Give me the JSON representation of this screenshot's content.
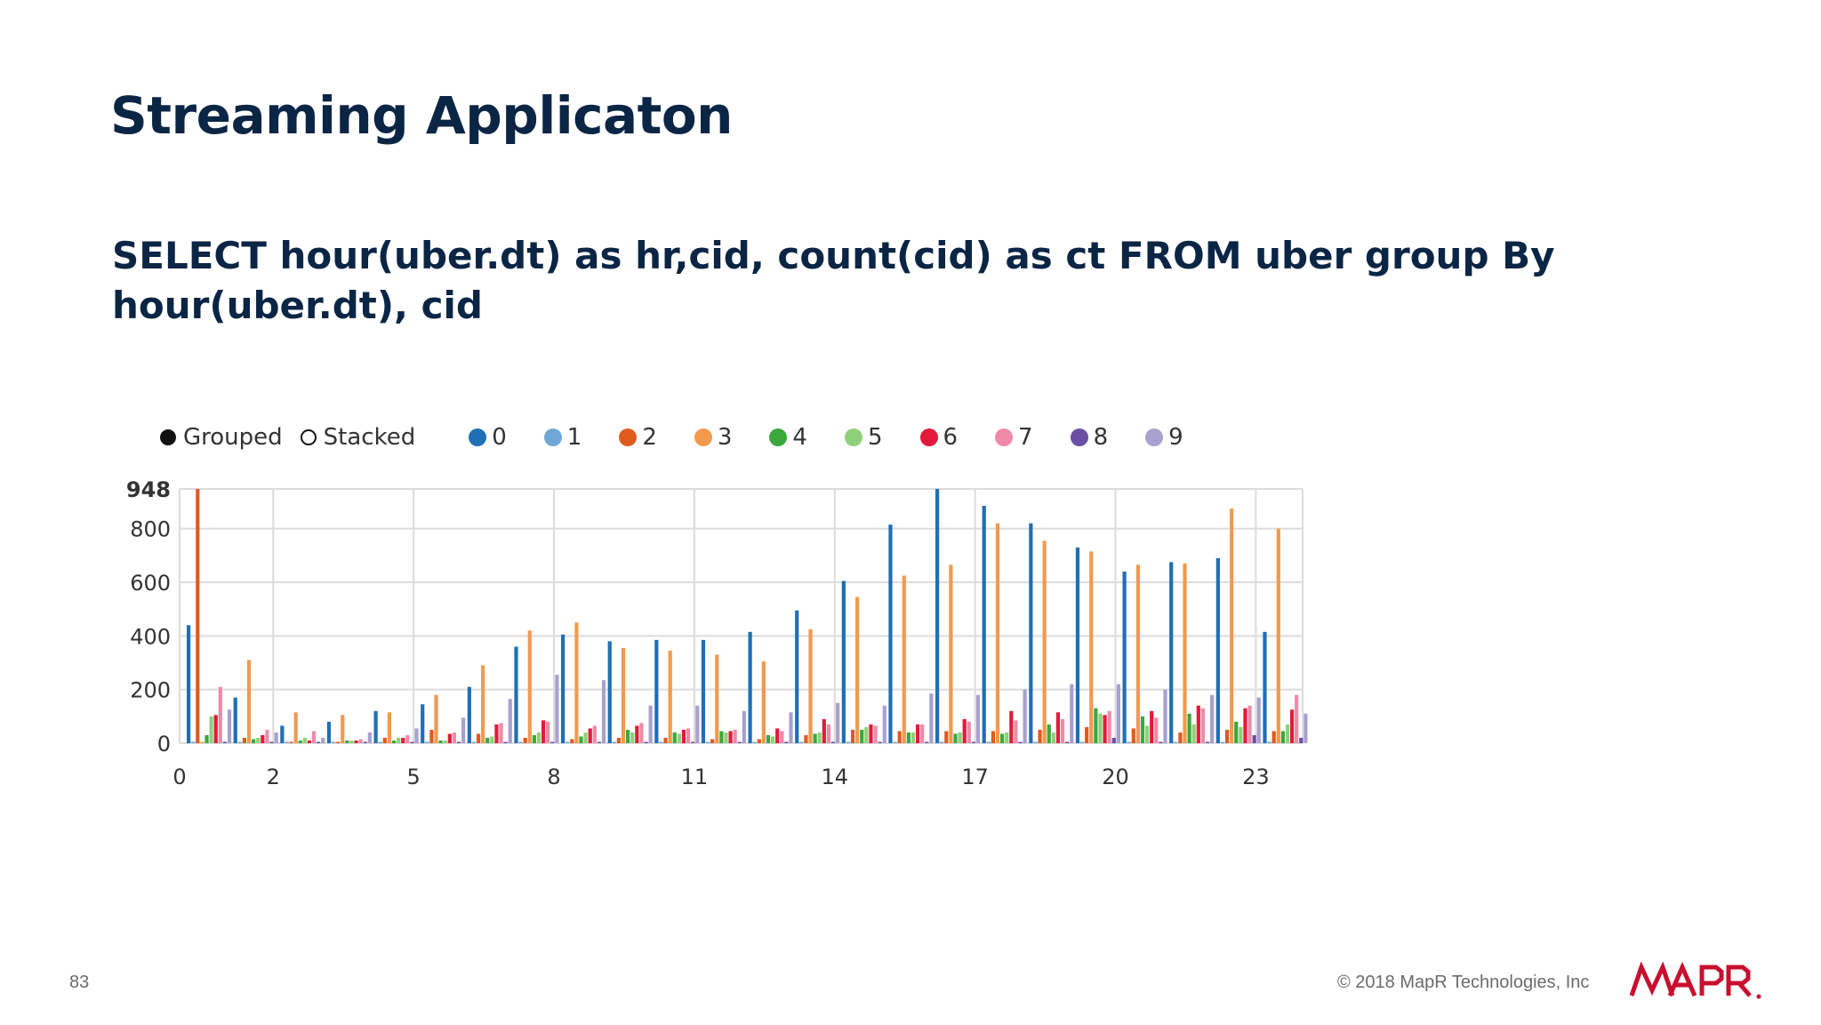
{
  "slide": {
    "title": "Streaming Applicaton",
    "query": "SELECT hour(uber.dt) as hr,cid, count(cid) as ct FROM uber group By hour(uber.dt), cid",
    "number": "83",
    "copyright": "© 2018 MapR Technologies, Inc",
    "logo_text": "MAPR"
  },
  "legend": {
    "modes": [
      {
        "label": "Grouped",
        "selected": true
      },
      {
        "label": "Stacked",
        "selected": false
      }
    ]
  },
  "chart_data": {
    "type": "bar",
    "grouped": true,
    "x_tick_labels": [
      "0",
      "2",
      "5",
      "8",
      "11",
      "14",
      "17",
      "20",
      "23"
    ],
    "y_tick_labels": [
      "948",
      "800",
      "600",
      "400",
      "200",
      "0"
    ],
    "ylim": [
      0,
      948
    ],
    "grid": true,
    "categories": [
      "0",
      "1",
      "2",
      "3",
      "4",
      "5",
      "6",
      "7",
      "8",
      "9",
      "10",
      "11",
      "12",
      "13",
      "14",
      "15",
      "16",
      "17",
      "18",
      "19",
      "20",
      "21",
      "22",
      "23"
    ],
    "series": [
      {
        "name": "0",
        "color": "#1f6fb5",
        "values": [
          440,
          170,
          65,
          80,
          120,
          145,
          210,
          360,
          405,
          380,
          385,
          385,
          415,
          495,
          605,
          815,
          948,
          885,
          820,
          730,
          640,
          675,
          690,
          415
        ]
      },
      {
        "name": "1",
        "color": "#6fa8d6",
        "values": [
          5,
          5,
          5,
          5,
          5,
          5,
          5,
          5,
          5,
          5,
          5,
          5,
          5,
          5,
          5,
          5,
          5,
          5,
          5,
          5,
          5,
          5,
          5,
          5
        ]
      },
      {
        "name": "2",
        "color": "#e05a1e",
        "values": [
          948,
          20,
          5,
          5,
          20,
          50,
          35,
          20,
          15,
          20,
          20,
          15,
          15,
          30,
          50,
          45,
          45,
          45,
          50,
          60,
          55,
          40,
          50,
          45
        ]
      },
      {
        "name": "3",
        "color": "#f19a4e",
        "values": [
          5,
          310,
          115,
          105,
          115,
          180,
          290,
          420,
          450,
          355,
          345,
          330,
          305,
          425,
          545,
          625,
          665,
          820,
          755,
          715,
          665,
          670,
          875,
          800
        ]
      },
      {
        "name": "4",
        "color": "#3aa83a",
        "values": [
          30,
          15,
          10,
          10,
          10,
          10,
          20,
          30,
          25,
          50,
          40,
          45,
          30,
          35,
          50,
          40,
          35,
          35,
          70,
          130,
          100,
          110,
          80,
          45
        ]
      },
      {
        "name": "5",
        "color": "#8ed17a",
        "values": [
          100,
          20,
          20,
          10,
          20,
          10,
          25,
          40,
          40,
          40,
          35,
          40,
          25,
          40,
          60,
          40,
          40,
          40,
          40,
          110,
          65,
          70,
          60,
          70
        ]
      },
      {
        "name": "6",
        "color": "#e31a3b",
        "values": [
          105,
          30,
          10,
          10,
          20,
          35,
          70,
          85,
          55,
          65,
          50,
          45,
          55,
          90,
          70,
          70,
          90,
          120,
          115,
          105,
          120,
          140,
          130,
          125
        ]
      },
      {
        "name": "7",
        "color": "#f08aa8",
        "values": [
          210,
          50,
          45,
          15,
          30,
          40,
          75,
          80,
          65,
          75,
          55,
          50,
          45,
          70,
          65,
          70,
          80,
          85,
          90,
          120,
          95,
          130,
          140,
          180
        ]
      },
      {
        "name": "8",
        "color": "#6a4fa3",
        "values": [
          5,
          5,
          5,
          5,
          5,
          5,
          5,
          5,
          5,
          5,
          5,
          5,
          5,
          5,
          5,
          5,
          5,
          5,
          5,
          20,
          5,
          5,
          30,
          20
        ]
      },
      {
        "name": "9",
        "color": "#a8a0cf",
        "values": [
          125,
          40,
          20,
          40,
          55,
          95,
          165,
          255,
          235,
          140,
          140,
          120,
          115,
          150,
          140,
          185,
          180,
          200,
          220,
          220,
          200,
          180,
          170,
          110
        ]
      }
    ]
  }
}
